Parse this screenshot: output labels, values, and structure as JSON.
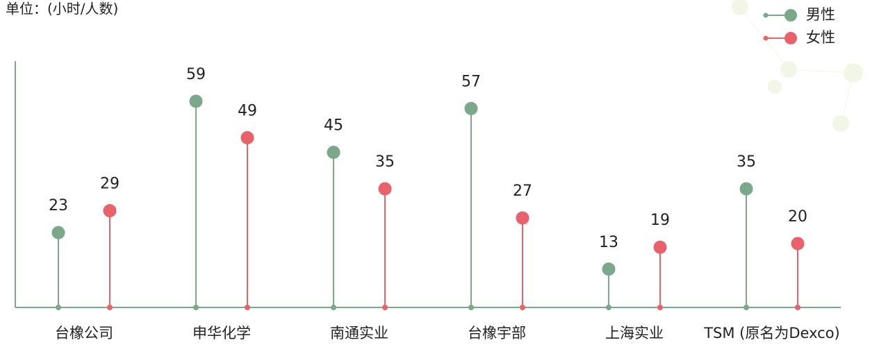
{
  "chart_data": {
    "type": "lollipop",
    "title": "单位：(小时/人数)",
    "categories": [
      "台橡公司",
      "申华化学",
      "南通实业",
      "台橡宇部",
      "上海实业",
      "TSM (原名为Dexco)"
    ],
    "series": [
      {
        "name": "男性",
        "color": "#7ba88a",
        "values": [
          23,
          59,
          45,
          57,
          13,
          35
        ]
      },
      {
        "name": "女性",
        "color": "#e8616b",
        "values": [
          29,
          49,
          35,
          27,
          19,
          20
        ]
      }
    ],
    "ylim": [
      2.5,
      70
    ],
    "legend": "top-right"
  }
}
